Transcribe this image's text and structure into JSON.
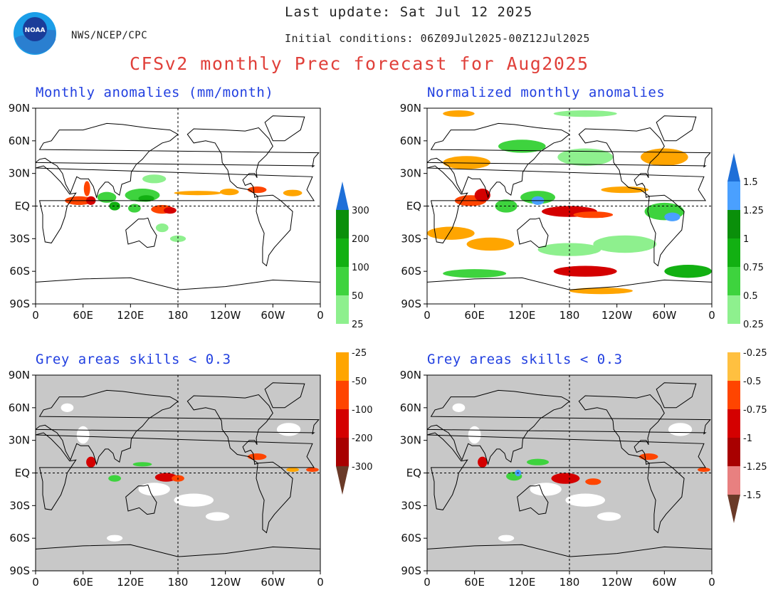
{
  "header": {
    "last_update": "Last update: Sat Jul 12 2025",
    "initial_conditions": "Initial conditions: 06Z09Jul2025-00Z12Jul2025",
    "organization": "NWS/NCEP/CPC",
    "logo_text": "NOAA",
    "main_title": "CFSv2 monthly Prec forecast for Aug2025"
  },
  "panels": [
    {
      "title": "Monthly anomalies (mm/month)",
      "style": "anomaly"
    },
    {
      "title": "Normalized monthly anomalies",
      "style": "normalized"
    },
    {
      "title": "Grey areas skills < 0.3",
      "style": "masked"
    },
    {
      "title": "Grey areas skills < 0.3",
      "style": "masked"
    }
  ],
  "axes": {
    "lat_labels": [
      "90N",
      "60N",
      "30N",
      "EQ",
      "30S",
      "60S",
      "90S"
    ],
    "lon_labels": [
      "0",
      "60E",
      "120E",
      "180",
      "120W",
      "60W",
      "0"
    ]
  },
  "colorbars": {
    "mm": {
      "labels": [
        "300",
        "200",
        "100",
        "50",
        "25",
        "-25",
        "-50",
        "-100",
        "-200",
        "-300"
      ],
      "colors": [
        "#0a8f0a",
        "#12b012",
        "#3ed33e",
        "#8ef08e",
        "#ffffff",
        "#ffa500",
        "#ff4500",
        "#d40000",
        "#a80000"
      ],
      "top_arrow": "#1e6fd8",
      "bottom_arrow": "#6a3a28"
    },
    "normalized": {
      "labels": [
        "1.5",
        "1.25",
        "1",
        "0.75",
        "0.5",
        "0.25",
        "-0.25",
        "-0.5",
        "-0.75",
        "-1",
        "-1.25",
        "-1.5"
      ],
      "colors": [
        "#4aa0ff",
        "#0a8f0a",
        "#12b012",
        "#3ed33e",
        "#8ef08e",
        "#ffffff",
        "#ffc040",
        "#ff4500",
        "#d40000",
        "#a80000",
        "#e88080"
      ],
      "top_arrow": "#1e6fd8",
      "bottom_arrow": "#6a3a28"
    }
  },
  "colors": {
    "skill_mask": "#c8c8c8",
    "title_red": "#e0403a",
    "panel_title_blue": "#2240e0"
  }
}
